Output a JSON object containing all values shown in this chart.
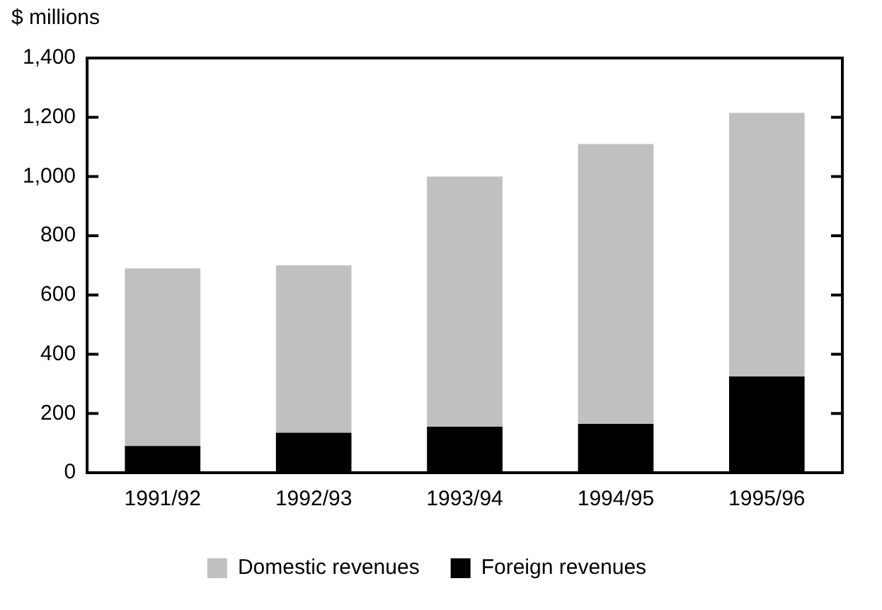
{
  "chart_data": {
    "type": "bar",
    "stacked": true,
    "ylabel": "$ millions",
    "categories": [
      "1991/92",
      "1992/93",
      "1993/94",
      "1994/95",
      "1995/96"
    ],
    "series": [
      {
        "name": "Foreign revenues",
        "color": "#000000",
        "values": [
          90,
          135,
          155,
          165,
          325
        ]
      },
      {
        "name": "Domestic revenues",
        "color": "#c0c0c0",
        "values": [
          600,
          565,
          845,
          945,
          890
        ]
      }
    ],
    "ylim": [
      0,
      1400
    ],
    "yticks": [
      0,
      {
        "value": 200,
        "label": "200"
      },
      {
        "value": 400,
        "label": "400"
      },
      {
        "value": 600,
        "label": "600"
      },
      {
        "value": 800,
        "label": "800"
      },
      {
        "value": 1000,
        "label": "1,000"
      },
      {
        "value": 1200,
        "label": "1,200"
      },
      {
        "value": 1400,
        "label": "1,400"
      }
    ],
    "grid": false,
    "legend": "bottom"
  }
}
